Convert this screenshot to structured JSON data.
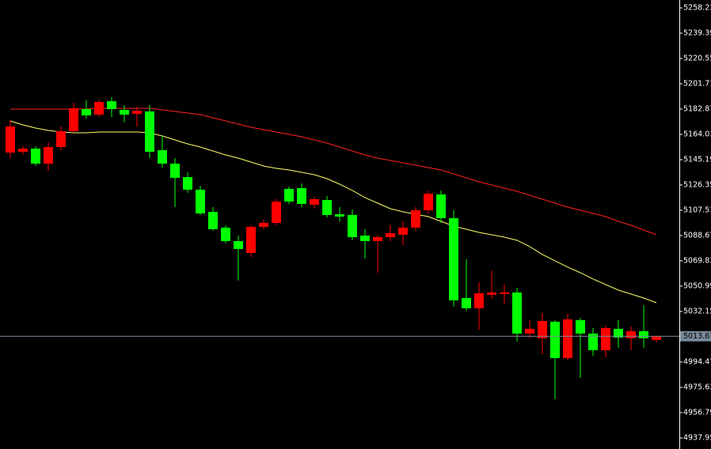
{
  "chart_data": {
    "type": "candlestick",
    "background": "#000000",
    "up_color": "#ff0000",
    "down_color": "#00ff00",
    "axis_color": "#ffffff",
    "grid": false,
    "ylim": [
      4929.7,
      5264.1
    ],
    "yticks": [
      5258.23,
      5239.39,
      5220.55,
      5201.71,
      5182.87,
      5164.03,
      5145.19,
      5126.35,
      5107.51,
      5088.67,
      5069.83,
      5050.99,
      5032.15,
      4994.47,
      4975.63,
      4956.79,
      4937.95
    ],
    "last_price": 5013.67,
    "last_price_color": "#778899",
    "open": [
      5150.49,
      5151.08,
      5153.43,
      5142.25,
      5154.61,
      5166.39,
      5182.87,
      5178.75,
      5188.76,
      5182.28,
      5179.34,
      5181.11,
      5152.26,
      5142.25,
      5132.24,
      5122.82,
      5106.33,
      5094.56,
      5084.55,
      5075.72,
      5095.15,
      5098.09,
      5123.41,
      5124.0,
      5111.63,
      5115.17,
      5104.57,
      5103.98,
      5088.67,
      5084.55,
      5087.49,
      5089.26,
      5094.56,
      5107.51,
      5119.29,
      5101.62,
      5042.16,
      5034.51,
      5044.52,
      5045.1,
      5046.28,
      5015.67,
      5012.13,
      5024.5,
      4997.42,
      5025.68,
      5015.67,
      5003.3,
      5019.2,
      5012.13,
      5017.43,
      5010.96
    ],
    "high": [
      5174.63,
      5155.2,
      5155.2,
      5158.14,
      5169.92,
      5187.58,
      5189.35,
      5189.94,
      5191.7,
      5185.82,
      5184.64,
      5185.82,
      5162.85,
      5146.37,
      5135.77,
      5125.76,
      5109.87,
      5096.33,
      5088.67,
      5096.33,
      5100.45,
      5115.75,
      5125.17,
      5127.53,
      5117.52,
      5118.11,
      5109.87,
      5108.1,
      5093.38,
      5089.26,
      5096.33,
      5099.27,
      5109.87,
      5122.23,
      5122.23,
      5107.51,
      5071.01,
      5053.94,
      5062.77,
      5052.17,
      5049.81,
      5025.68,
      5030.97,
      5025.68,
      5030.39,
      5027.44,
      5019.79,
      5021.55,
      5025.68,
      5020.97,
      5036.86,
      5014.5
    ],
    "low": [
      5146.37,
      5148.72,
      5140.48,
      5136.95,
      5152.26,
      5165.21,
      5175.81,
      5176.98,
      5176.98,
      5172.86,
      5169.92,
      5146.37,
      5139.3,
      5109.87,
      5120.46,
      5103.98,
      5092.2,
      5082.78,
      5055.11,
      5072.78,
      5093.38,
      5096.33,
      5112.22,
      5109.87,
      5108.69,
      5102.21,
      5099.27,
      5085.14,
      5071.6,
      5061.0,
      5084.55,
      5081.61,
      5092.2,
      5105.16,
      5098.09,
      5035.68,
      5032.74,
      5018.61,
      5041.57,
      5038.04,
      5009.78,
      5012.13,
      5000.36,
      4966.8,
      4995.65,
      4982.7,
      4999.18,
      4998.0,
      5005.07,
      5003.3,
      5005.07,
      5009.19
    ],
    "close": [
      5169.92,
      5153.43,
      5142.25,
      5154.61,
      5166.39,
      5183.46,
      5178.16,
      5188.17,
      5182.87,
      5178.75,
      5181.69,
      5151.08,
      5142.25,
      5131.65,
      5122.82,
      5105.16,
      5093.38,
      5084.55,
      5078.66,
      5095.15,
      5098.09,
      5113.99,
      5113.99,
      5112.22,
      5115.75,
      5103.98,
      5102.8,
      5087.49,
      5084.55,
      5087.49,
      5090.44,
      5094.56,
      5107.51,
      5119.88,
      5101.62,
      5040.39,
      5034.51,
      5045.69,
      5046.28,
      5046.28,
      5015.67,
      5019.2,
      5025.09,
      4997.42,
      5026.26,
      5015.67,
      5003.3,
      5019.79,
      5012.72,
      5017.43,
      5012.13,
      5013.67
    ],
    "overlays": [
      {
        "color": "#ffff66",
        "values": [
          5174.04,
          5171.1,
          5168.74,
          5166.98,
          5165.8,
          5165.21,
          5165.21,
          5165.8,
          5165.8,
          5165.8,
          5165.8,
          5165.21,
          5162.85,
          5159.91,
          5156.97,
          5154.61,
          5151.67,
          5148.72,
          5146.37,
          5143.43,
          5140.48,
          5138.72,
          5137.54,
          5135.77,
          5134.01,
          5131.06,
          5126.94,
          5122.23,
          5116.93,
          5112.81,
          5108.69,
          5106.33,
          5104.57,
          5102.8,
          5099.27,
          5095.74,
          5093.38,
          5091.03,
          5089.26,
          5087.49,
          5085.14,
          5080.43,
          5074.54,
          5069.83,
          5065.12,
          5061.0,
          5056.29,
          5052.17,
          5048.05,
          5045.1,
          5042.16,
          5038.63
        ]
      },
      {
        "color": "#ff2020",
        "values": [
          5182.87,
          5182.87,
          5182.87,
          5182.87,
          5182.87,
          5182.87,
          5182.87,
          5183.46,
          5183.46,
          5183.46,
          5183.46,
          5183.46,
          5182.28,
          5181.11,
          5179.93,
          5178.75,
          5176.4,
          5174.04,
          5171.69,
          5169.33,
          5167.56,
          5165.8,
          5164.03,
          5162.27,
          5159.91,
          5157.56,
          5154.61,
          5151.67,
          5148.72,
          5146.37,
          5144.6,
          5142.84,
          5141.07,
          5139.3,
          5137.54,
          5134.59,
          5131.65,
          5128.71,
          5126.35,
          5124.0,
          5121.64,
          5118.7,
          5115.75,
          5112.81,
          5109.87,
          5107.51,
          5105.16,
          5102.8,
          5099.27,
          5096.33,
          5092.79,
          5089.26
        ]
      }
    ]
  }
}
